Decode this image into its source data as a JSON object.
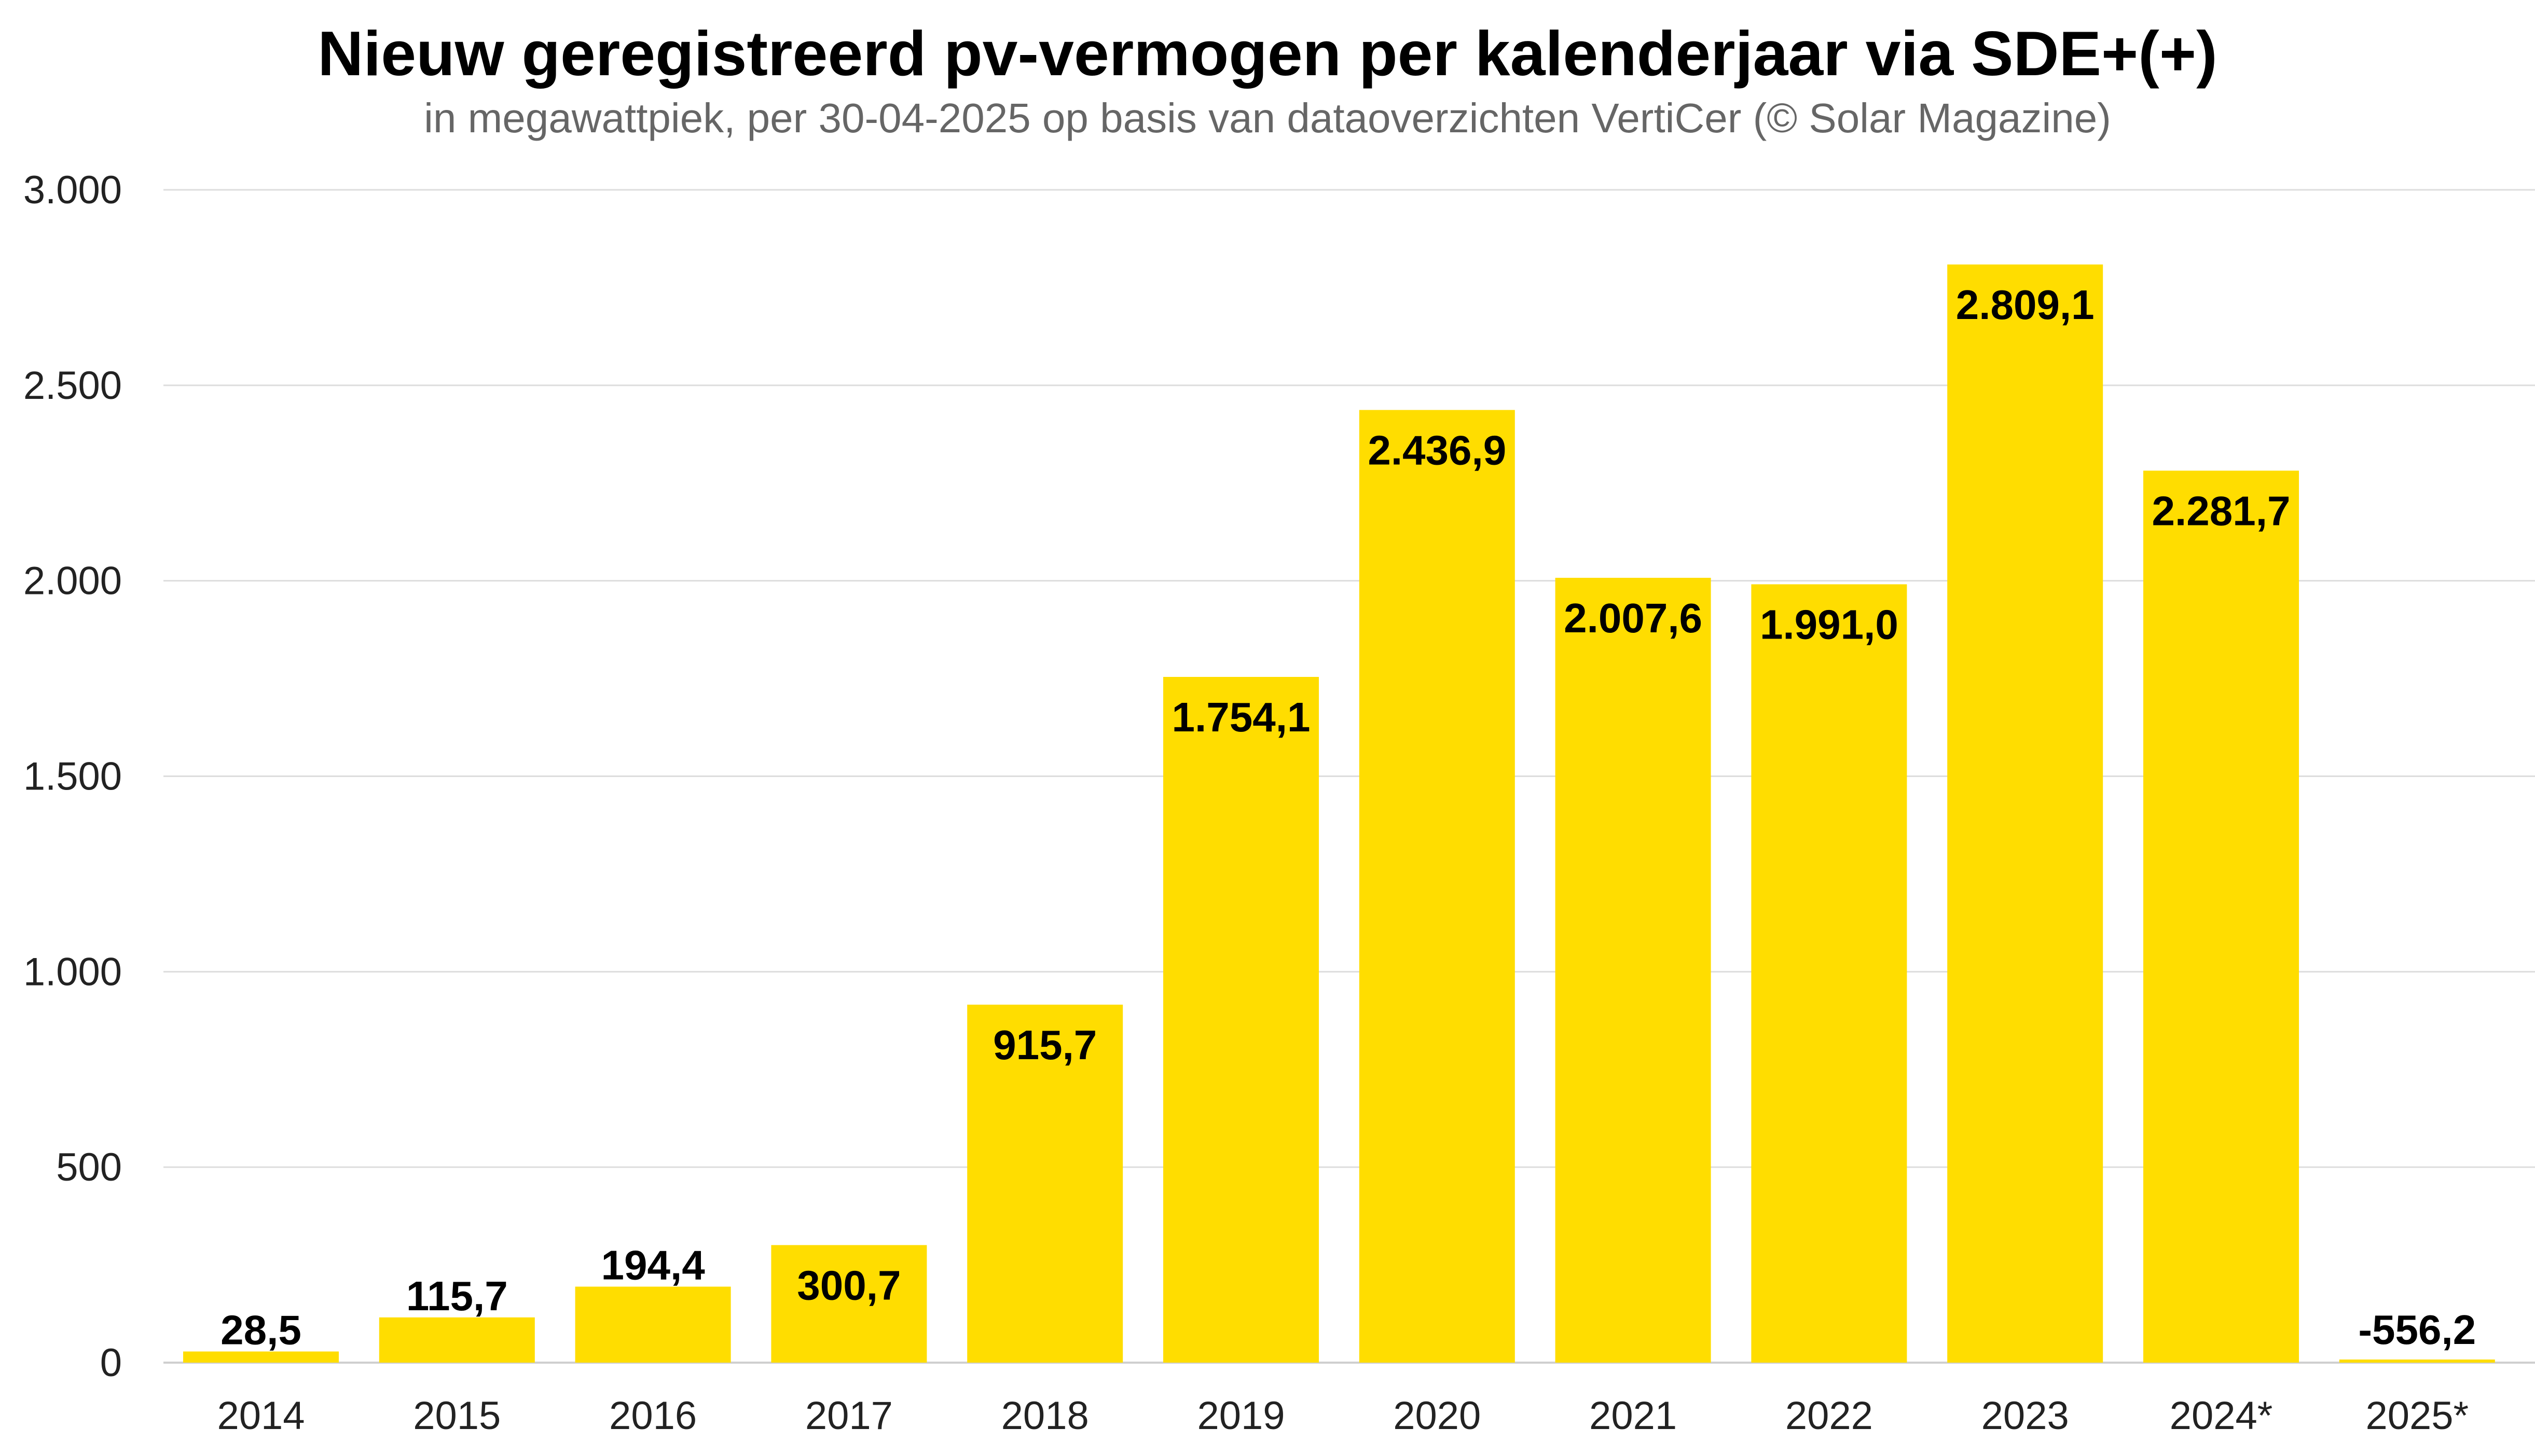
{
  "chart_data": {
    "type": "bar",
    "title": "Nieuw geregistreerd pv-vermogen per kalenderjaar via SDE+(+)",
    "subtitle": "in megawattpiek, per 30-04-2025 op basis van dataoverzichten VertiCer (© Solar Magazine)",
    "categories": [
      "2014",
      "2015",
      "2016",
      "2017",
      "2018",
      "2019",
      "2020",
      "2021",
      "2022",
      "2023",
      "2024*",
      "2025*"
    ],
    "values": [
      28.5,
      115.7,
      194.4,
      300.7,
      915.7,
      1754.1,
      2436.9,
      2007.6,
      1991.0,
      2809.1,
      2281.7,
      -556.2
    ],
    "value_labels": [
      "28,5",
      "115,7",
      "194,4",
      "300,7",
      "915,7",
      "1.754,1",
      "2.436,9",
      "2.007,6",
      "1.991,0",
      "2.809,1",
      "2.281,7",
      "-556,2"
    ],
    "yticks": [
      0,
      500,
      1000,
      1500,
      2000,
      2500,
      3000
    ],
    "ytick_labels": [
      "0",
      "500",
      "1.000",
      "1.500",
      "2.000",
      "2.500",
      "3.000"
    ],
    "ylim": [
      0,
      3000
    ],
    "grid": true,
    "legend": "none",
    "colors": {
      "bar": "#FFDD00",
      "grid": "#dddddd",
      "label": "#000000",
      "axis_text": "#222222"
    }
  }
}
